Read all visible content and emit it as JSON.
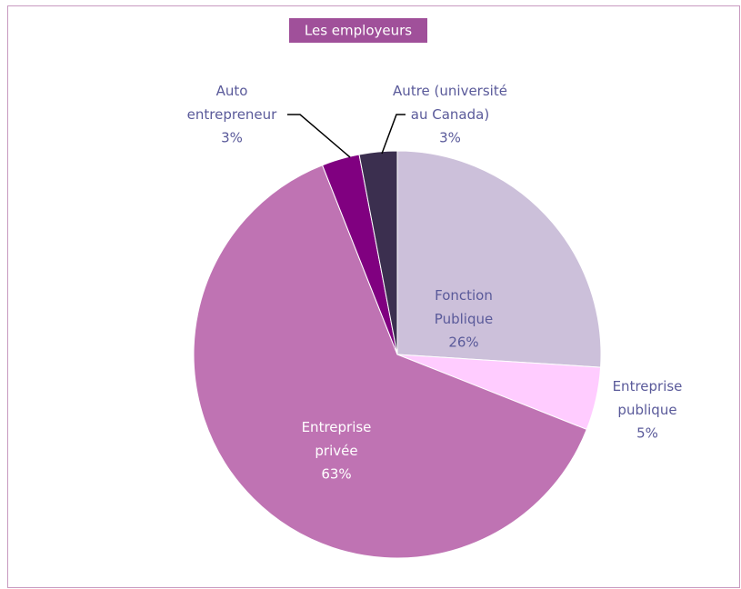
{
  "chart_data": {
    "type": "pie",
    "title": "Les employeurs",
    "categories": [
      "Fonction Publique",
      "Entreprise publique",
      "Entreprise privée",
      "Auto entrepreneur",
      "Autre (université au Canada)"
    ],
    "values": [
      26,
      5,
      63,
      3,
      3
    ],
    "value_labels": [
      "26%",
      "5%",
      "63%",
      "3%",
      "3%"
    ],
    "colors": [
      "#ccc0da",
      "#ffccff",
      "#bf73b3",
      "#800080",
      "#3b2f4f"
    ]
  }
}
